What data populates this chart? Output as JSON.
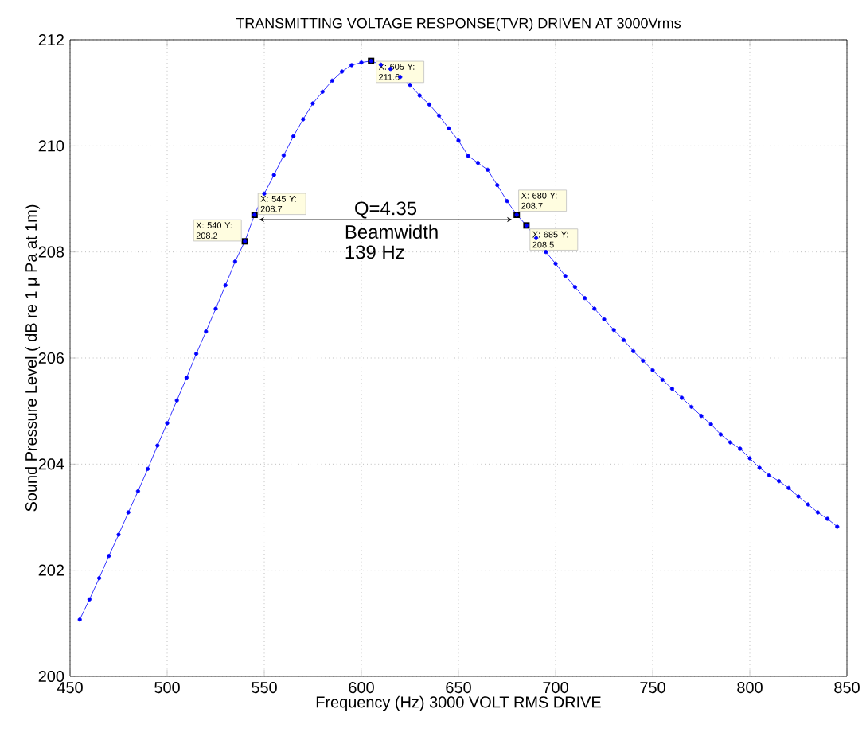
{
  "chart_data": {
    "type": "line",
    "title": "TRANSMITTING VOLTAGE RESPONSE(TVR) DRIVEN AT 3000Vrms",
    "xlabel": "Frequency (Hz) 3000 VOLT RMS DRIVE",
    "ylabel": "Sound Pressure Level ( dB re 1 μ Pa at 1m)",
    "x": [
      455,
      460,
      465,
      470,
      475,
      480,
      485,
      490,
      495,
      500,
      505,
      510,
      515,
      520,
      525,
      530,
      535,
      540,
      545,
      550,
      555,
      560,
      565,
      570,
      575,
      580,
      585,
      590,
      595,
      600,
      605,
      610,
      615,
      620,
      625,
      630,
      635,
      640,
      645,
      650,
      655,
      660,
      665,
      670,
      675,
      680,
      685,
      690,
      695,
      700,
      705,
      710,
      715,
      720,
      725,
      730,
      735,
      740,
      745,
      750,
      755,
      760,
      765,
      770,
      775,
      780,
      785,
      790,
      795,
      800,
      805,
      810,
      815,
      820,
      825,
      830,
      835,
      840,
      845
    ],
    "series": [
      {
        "color": "#0000ff",
        "values": [
          201.07,
          201.45,
          201.85,
          202.27,
          202.67,
          203.09,
          203.49,
          203.91,
          204.35,
          204.77,
          205.2,
          205.63,
          206.08,
          206.5,
          206.93,
          207.37,
          207.82,
          208.2,
          208.7,
          209.1,
          209.45,
          209.82,
          210.18,
          210.5,
          210.8,
          211.02,
          211.23,
          211.4,
          211.52,
          211.57,
          211.6,
          211.53,
          211.45,
          211.3,
          211.15,
          210.95,
          210.78,
          210.57,
          210.33,
          210.1,
          209.81,
          209.68,
          209.55,
          209.26,
          208.96,
          208.7,
          208.5,
          208.26,
          208.0,
          207.78,
          207.55,
          207.34,
          207.13,
          206.93,
          206.73,
          206.53,
          206.34,
          206.13,
          205.95,
          205.77,
          205.59,
          205.42,
          205.25,
          205.08,
          204.91,
          204.75,
          204.56,
          204.41,
          204.29,
          204.11,
          203.93,
          203.79,
          203.68,
          203.55,
          203.39,
          203.24,
          203.09,
          202.97,
          202.82
        ]
      }
    ],
    "xlim": [
      450,
      850
    ],
    "ylim": [
      200,
      212
    ],
    "xticks": [
      450,
      500,
      550,
      600,
      650,
      700,
      750,
      800,
      850
    ],
    "yticks": [
      200,
      202,
      204,
      206,
      208,
      210,
      212
    ],
    "grid": true,
    "marker": "circle",
    "line_style": "solid",
    "annotations": [
      {
        "text": "X: 540 Y: 208.2",
        "x": 540,
        "y": 208.2
      },
      {
        "text": "X: 545 Y: 208.7",
        "x": 545,
        "y": 208.7
      },
      {
        "text": "X: 605 Y: 211.6",
        "x": 605,
        "y": 211.6
      },
      {
        "text": "X: 680 Y: 208.7",
        "x": 680,
        "y": 208.7
      },
      {
        "text": "X: 685 Y: 208.5",
        "x": 685,
        "y": 208.5
      },
      "Q=4.35",
      "Beamwidth",
      "139 Hz"
    ]
  }
}
